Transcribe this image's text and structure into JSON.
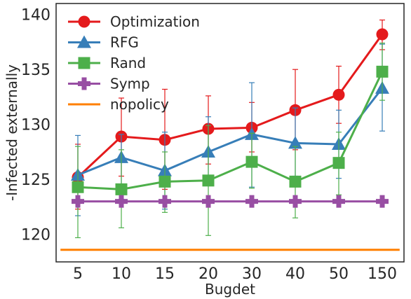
{
  "chart_data": {
    "type": "line",
    "categories": [
      "5",
      "10",
      "15",
      "20",
      "30",
      "40",
      "50",
      "150"
    ],
    "xlabel": "Bugdet",
    "ylabel": "-Infected externally",
    "ylim": [
      117.5,
      141
    ],
    "yticks": [
      120,
      125,
      130,
      135,
      140
    ],
    "grid": false,
    "legend_position": "top-left",
    "series": [
      {
        "name": "Optimization",
        "color": "#e41a1c",
        "marker": "circle",
        "values": [
          125.2,
          128.9,
          128.6,
          129.6,
          129.7,
          131.3,
          132.7,
          138.2
        ],
        "err_low": [
          122.3,
          125.3,
          124.1,
          126.4,
          127.5,
          127.7,
          130.1,
          136.8
        ],
        "err_high": [
          128.2,
          132.4,
          133.2,
          132.6,
          132.0,
          135.0,
          135.3,
          139.5
        ]
      },
      {
        "name": "RFG",
        "color": "#377eb8",
        "marker": "triangle",
        "values": [
          125.4,
          127.0,
          125.8,
          127.5,
          129.1,
          128.3,
          128.2,
          133.3
        ],
        "err_low": [
          121.7,
          123.2,
          122.3,
          124.5,
          124.3,
          125.3,
          125.1,
          129.4
        ],
        "err_high": [
          129.0,
          129.1,
          129.3,
          130.7,
          133.8,
          131.5,
          131.3,
          137.3
        ]
      },
      {
        "name": "Rand",
        "color": "#4daf4a",
        "marker": "square",
        "values": [
          124.3,
          124.1,
          124.8,
          124.9,
          126.6,
          124.8,
          126.5,
          134.8
        ],
        "err_low": [
          119.7,
          120.6,
          122.0,
          119.9,
          124.2,
          121.5,
          123.6,
          132.2
        ],
        "err_high": [
          128.0,
          127.7,
          127.5,
          129.9,
          129.2,
          128.0,
          129.3,
          137.4
        ]
      },
      {
        "name": "Symp",
        "color": "#984ea3",
        "marker": "plus",
        "values": [
          123.0,
          123.0,
          123.0,
          123.0,
          123.0,
          123.0,
          123.0,
          123.0
        ]
      },
      {
        "name": "nopolicy",
        "color": "#ff7f00",
        "marker": "none",
        "values": [
          118.6,
          118.6,
          118.6,
          118.6,
          118.6,
          118.6,
          118.6,
          118.6
        ]
      }
    ]
  }
}
